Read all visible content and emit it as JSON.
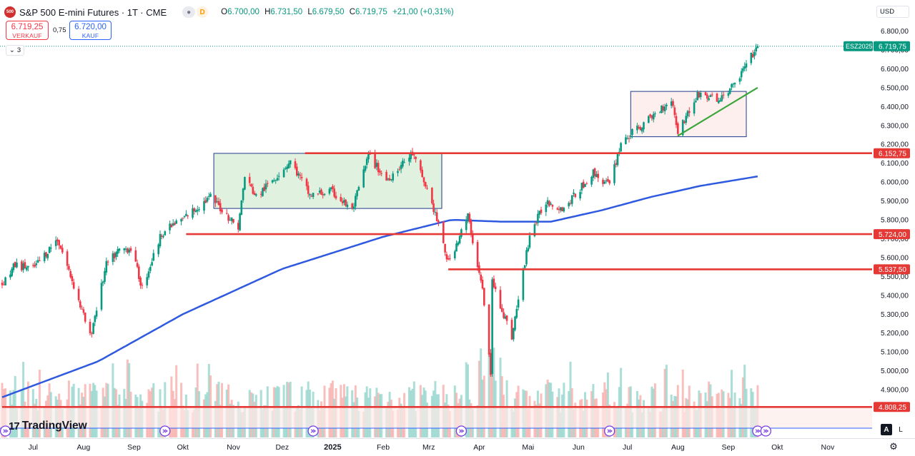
{
  "legend": {
    "symbol_badge": "500",
    "title": "S&P 500 E-mini Futures · 1T · CME",
    "open_label": "O",
    "open": "6.700,00",
    "high_label": "H",
    "high": "6.731,50",
    "low_label": "L",
    "low": "6.679,50",
    "close_label": "C",
    "close": "6.719,75",
    "change": "+21,00 (+0,31%)",
    "d_badge": "D"
  },
  "trade": {
    "sell_price": "6.719,25",
    "sell_label": "VERKAUF",
    "spread": "0,75",
    "buy_price": "6.720,00",
    "buy_label": "KAUF"
  },
  "indicator_count": "3",
  "currency": "USD",
  "branding": "TradingView",
  "buttons": {
    "auto": "A",
    "log": "L"
  },
  "chart_data": {
    "type": "candlestick",
    "title": "S&P 500 E-mini Futures · 1T · CME",
    "ylim": [
      4700,
      6900
    ],
    "y_ticks": [
      4900,
      5000,
      5100,
      5200,
      5300,
      5400,
      5500,
      5600,
      5700,
      5800,
      5900,
      6000,
      6100,
      6200,
      6300,
      6400,
      6500,
      6600,
      6700,
      6800
    ],
    "y_tick_labels": [
      "4.900,00",
      "5.000,00",
      "5.100,00",
      "5.200,00",
      "5.300,00",
      "5.400,00",
      "5.500,00",
      "5.600,00",
      "5.700,00",
      "5.800,00",
      "5.900,00",
      "6.000,00",
      "6.100,00",
      "6.200,00",
      "6.300,00",
      "6.400,00",
      "6.500,00",
      "6.600,00",
      "6.700,00",
      "6.800,00"
    ],
    "x_labels": [
      "Jul",
      "Aug",
      "Sep",
      "Okt",
      "Nov",
      "Dez",
      "2025",
      "Feb",
      "Mrz",
      "Apr",
      "Mai",
      "Jun",
      "Jul",
      "Aug",
      "Sep",
      "Okt",
      "Nov"
    ],
    "x_range": [
      "2024-06-12",
      "2025-11-23"
    ],
    "x_label_dates": [
      "2024-07-01",
      "2024-08-01",
      "2024-09-01",
      "2024-10-01",
      "2024-11-01",
      "2024-12-01",
      "2025-01-01",
      "2025-02-01",
      "2025-03-01",
      "2025-04-01",
      "2025-05-01",
      "2025-06-01",
      "2025-07-01",
      "2025-08-01",
      "2025-09-01",
      "2025-10-01",
      "2025-11-01"
    ],
    "price_anchors": [
      [
        "2024-06-12",
        5460
      ],
      [
        "2024-06-20",
        5560
      ],
      [
        "2024-07-01",
        5540
      ],
      [
        "2024-07-16",
        5700
      ],
      [
        "2024-07-25",
        5480
      ],
      [
        "2024-08-05",
        5180
      ],
      [
        "2024-08-15",
        5560
      ],
      [
        "2024-08-23",
        5640
      ],
      [
        "2024-08-30",
        5650
      ],
      [
        "2024-09-06",
        5440
      ],
      [
        "2024-09-18",
        5730
      ],
      [
        "2024-09-30",
        5800
      ],
      [
        "2024-10-18",
        5920
      ],
      [
        "2024-11-04",
        5760
      ],
      [
        "2024-11-08",
        6030
      ],
      [
        "2024-11-15",
        5920
      ],
      [
        "2024-12-06",
        6110
      ],
      [
        "2024-12-18",
        5930
      ],
      [
        "2024-12-31",
        5950
      ],
      [
        "2025-01-13",
        5850
      ],
      [
        "2025-01-23",
        6140
      ],
      [
        "2025-02-03",
        6010
      ],
      [
        "2025-02-19",
        6150
      ],
      [
        "2025-02-28",
        5960
      ],
      [
        "2025-03-05",
        5830
      ],
      [
        "2025-03-13",
        5570
      ],
      [
        "2025-03-25",
        5820
      ],
      [
        "2025-04-03",
        5430
      ],
      [
        "2025-04-08",
        4990
      ],
      [
        "2025-04-09",
        5470
      ],
      [
        "2025-04-21",
        5180
      ],
      [
        "2025-05-02",
        5720
      ],
      [
        "2025-05-12",
        5900
      ],
      [
        "2025-05-23",
        5860
      ],
      [
        "2025-06-10",
        6050
      ],
      [
        "2025-06-20",
        5980
      ],
      [
        "2025-06-27",
        6210
      ],
      [
        "2025-07-10",
        6300
      ],
      [
        "2025-07-28",
        6440
      ],
      [
        "2025-08-01",
        6270
      ],
      [
        "2025-08-14",
        6470
      ],
      [
        "2025-08-26",
        6430
      ],
      [
        "2025-09-05",
        6520
      ],
      [
        "2025-09-12",
        6620
      ],
      [
        "2025-09-19",
        6719.75
      ]
    ],
    "ma_anchors": [
      [
        "2024-06-12",
        4860
      ],
      [
        "2024-08-10",
        5050
      ],
      [
        "2024-10-01",
        5300
      ],
      [
        "2024-12-01",
        5540
      ],
      [
        "2025-02-01",
        5710
      ],
      [
        "2025-03-15",
        5800
      ],
      [
        "2025-04-15",
        5790
      ],
      [
        "2025-05-15",
        5790
      ],
      [
        "2025-06-15",
        5850
      ],
      [
        "2025-07-15",
        5920
      ],
      [
        "2025-08-15",
        5980
      ],
      [
        "2025-09-19",
        6030
      ]
    ],
    "last_date": "2025-09-19",
    "moving_average_color": "#2f5ae0",
    "up_color": "#089981",
    "down_color": "#f23645",
    "horizontal_levels": [
      {
        "value": 6152.75,
        "label": "6.152,75",
        "from": "2024-12-15"
      },
      {
        "value": 5724.0,
        "label": "5.724,00",
        "from": "2024-10-03"
      },
      {
        "value": 5537.5,
        "label": "5.537,50",
        "from": "2025-03-13"
      },
      {
        "value": 4808.25,
        "label": "4.808,25",
        "from": "2024-06-12"
      }
    ],
    "rectangles": [
      {
        "from": "2024-10-20",
        "to": "2025-03-09",
        "top": 6152,
        "bottom": 5860,
        "fill": "#dcefd9",
        "stroke": "#1e3a8a"
      },
      {
        "from": "2025-07-03",
        "to": "2025-09-12",
        "top": 6480,
        "bottom": 6240,
        "fill": "#fdecea",
        "stroke": "#1e3a8a"
      }
    ],
    "trend_line": {
      "from": [
        "2025-08-01",
        6245
      ],
      "to": [
        "2025-09-19",
        6500
      ],
      "color": "#3aa63a"
    },
    "last_price_label": "6.719,75",
    "contract_label": "ESZ2025",
    "event_markers": [
      "2024-06-14",
      "2024-09-20",
      "2024-12-20",
      "2025-03-21",
      "2025-06-20",
      "2025-09-19",
      "2025-09-24"
    ],
    "volume": {
      "min": 20000,
      "max": 160000,
      "typical": 60000
    }
  }
}
